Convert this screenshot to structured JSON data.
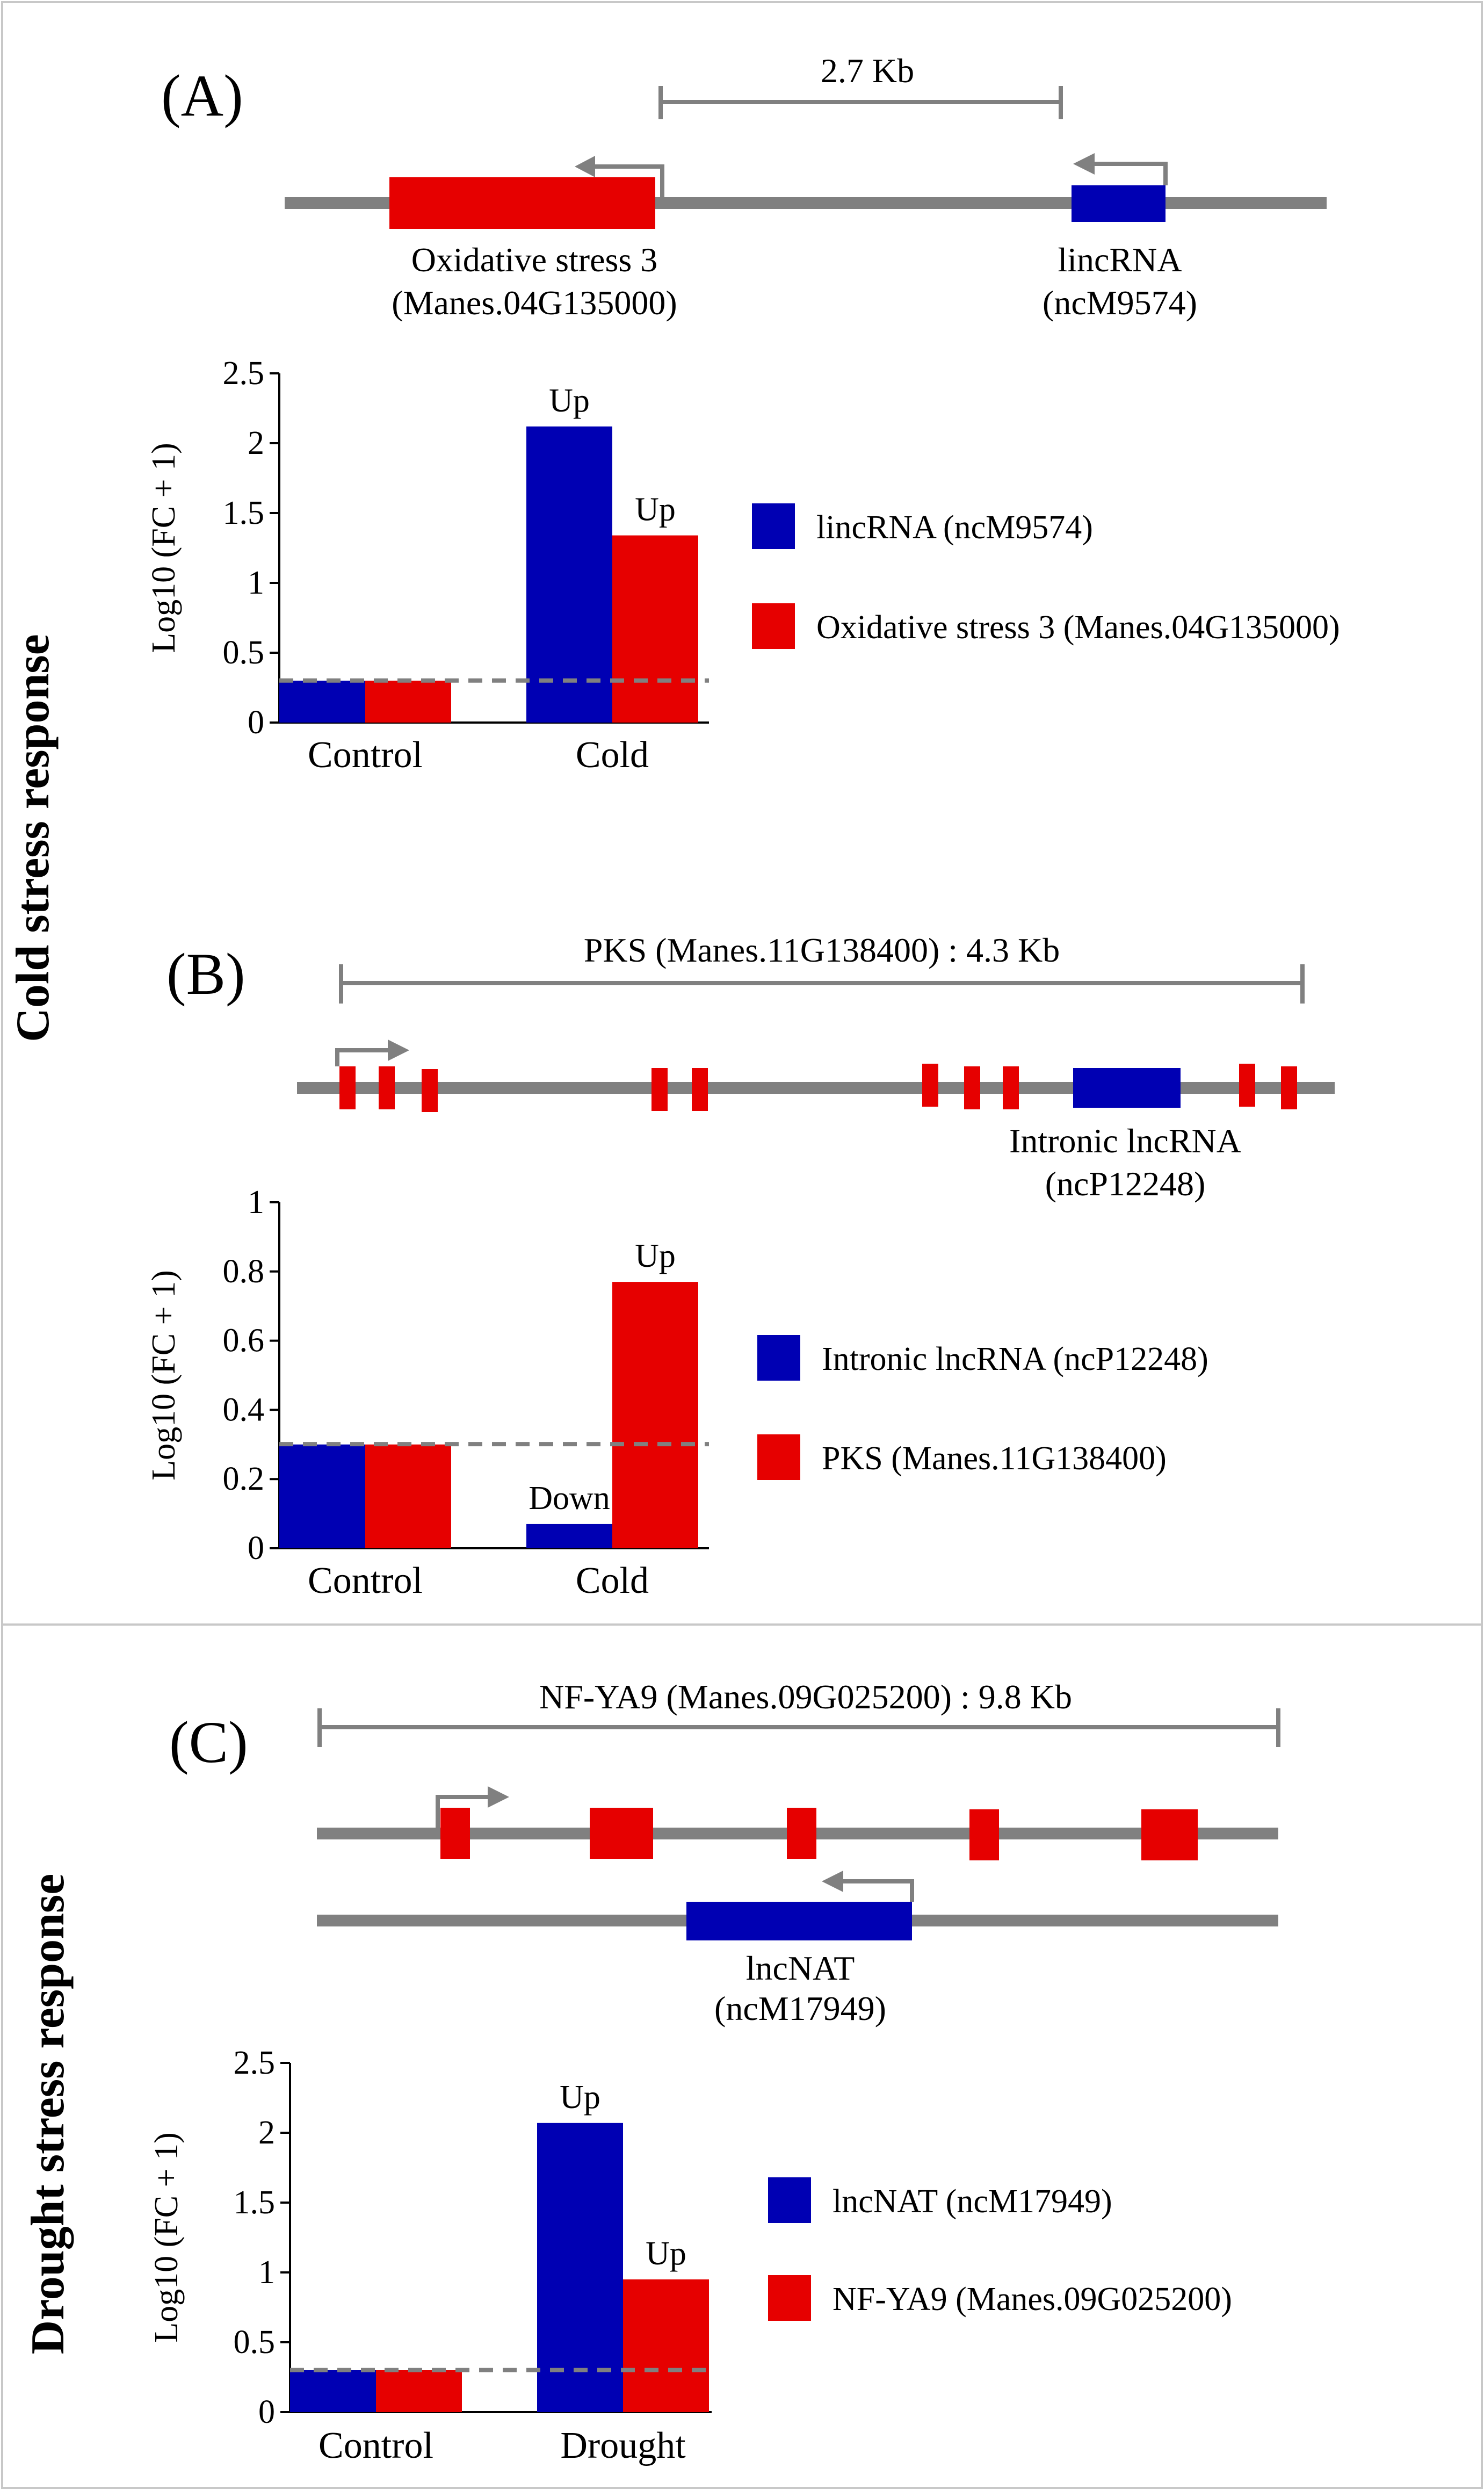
{
  "colors": {
    "lnc": "#0000b3",
    "gene": "#e60000",
    "track": "#808080"
  },
  "side_titles": {
    "cold": "Cold stress response",
    "drought": "Drought stress response"
  },
  "panel_a": {
    "letter": "(A)",
    "scale_label": "2.7 Kb",
    "gene_label_1": "Oxidative stress 3",
    "gene_label_2": "(Manes.04G135000)",
    "lnc_label_1": "lincRNA",
    "lnc_label_2": "(ncM9574)"
  },
  "panel_b": {
    "letter": "(B)",
    "scale_label": "PKS (Manes.11G138400) : 4.3 Kb",
    "lnc_label_1": "Intronic lncRNA",
    "lnc_label_2": "(ncP12248)"
  },
  "panel_c": {
    "letter": "(C)",
    "scale_label": "NF-YA9 (Manes.09G025200) : 9.8 Kb",
    "lnc_label_1": "lncNAT",
    "lnc_label_2": "(ncM17949)"
  },
  "chart_data": [
    {
      "type": "bar",
      "title": "",
      "xlabel": "",
      "ylabel": "Log10 (FC + 1)",
      "ylim": [
        0,
        2.5
      ],
      "yticks": [
        "0",
        "0.5",
        "1",
        "1.5",
        "2",
        "2.5"
      ],
      "categories": [
        "Control",
        "Cold"
      ],
      "series": [
        {
          "name": "lincRNA (ncM9574)",
          "color": "#0000b3",
          "values": [
            0.3,
            2.12
          ],
          "labels": [
            "",
            "Up"
          ]
        },
        {
          "name": "Oxidative stress 3 (Manes.04G135000)",
          "color": "#e60000",
          "values": [
            0.3,
            1.34
          ],
          "labels": [
            "",
            "Up"
          ]
        }
      ],
      "baseline": 0.301
    },
    {
      "type": "bar",
      "title": "",
      "xlabel": "",
      "ylabel": "Log10 (FC + 1)",
      "ylim": [
        0,
        1
      ],
      "yticks": [
        "0",
        "0.2",
        "0.4",
        "0.6",
        "0.8",
        "1"
      ],
      "categories": [
        "Control",
        "Cold"
      ],
      "series": [
        {
          "name": "Intronic lncRNA (ncP12248)",
          "color": "#0000b3",
          "values": [
            0.3,
            0.07
          ],
          "labels": [
            "",
            "Down"
          ]
        },
        {
          "name": "PKS (Manes.11G138400)",
          "color": "#e60000",
          "values": [
            0.3,
            0.77
          ],
          "labels": [
            "",
            "Up"
          ]
        }
      ],
      "baseline": 0.301
    },
    {
      "type": "bar",
      "title": "",
      "xlabel": "",
      "ylabel": "Log10 (FC + 1)",
      "ylim": [
        0,
        2.5
      ],
      "yticks": [
        "0",
        "0.5",
        "1",
        "1.5",
        "2",
        "2.5"
      ],
      "categories": [
        "Control",
        "Drought"
      ],
      "series": [
        {
          "name": "lncNAT (ncM17949)",
          "color": "#0000b3",
          "values": [
            0.3,
            2.07
          ],
          "labels": [
            "",
            "Up"
          ]
        },
        {
          "name": "NF-YA9 (Manes.09G025200)",
          "color": "#e60000",
          "values": [
            0.3,
            0.95
          ],
          "labels": [
            "",
            "Up"
          ]
        }
      ],
      "baseline": 0.301
    }
  ]
}
